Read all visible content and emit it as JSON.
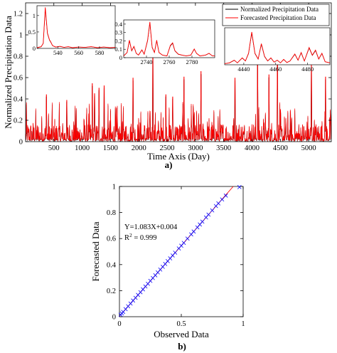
{
  "chart_data": [
    {
      "type": "line",
      "panel_label": "a)",
      "xlabel": "Time Axis (Day)",
      "ylabel": "Normalized Precipitation Data",
      "xlim": [
        1,
        5400
      ],
      "ylim": [
        0,
        1.3
      ],
      "xticks": [
        500,
        1000,
        1500,
        2000,
        2500,
        3000,
        3500,
        4000,
        4500,
        5000
      ],
      "yticks": [
        0,
        0.2,
        0.4,
        0.6,
        0.8,
        1,
        1.2
      ],
      "legend": {
        "placement": "top-right",
        "entries": [
          {
            "name": "Normalized Precipitation Data",
            "color": "#000000"
          },
          {
            "name": "Forecasted Precipitation Data",
            "color": "#ff0000"
          }
        ]
      },
      "series": [
        {
          "name": "Normalized Precipitation Data",
          "color": "#000000"
        },
        {
          "name": "Forecasted Precipitation Data",
          "color": "#ff0000"
        }
      ],
      "peaks": [
        {
          "x": 370,
          "y": 0.42
        },
        {
          "x": 730,
          "y": 0.37
        },
        {
          "x": 1175,
          "y": 0.52
        },
        {
          "x": 1220,
          "y": 0.43
        },
        {
          "x": 1300,
          "y": 0.48
        },
        {
          "x": 1390,
          "y": 0.5
        },
        {
          "x": 1900,
          "y": 0.57
        },
        {
          "x": 2250,
          "y": 0.8
        },
        {
          "x": 2480,
          "y": 0.42
        },
        {
          "x": 2600,
          "y": 0.4
        },
        {
          "x": 2800,
          "y": 0.58
        },
        {
          "x": 3100,
          "y": 0.63
        },
        {
          "x": 3700,
          "y": 0.57
        },
        {
          "x": 4100,
          "y": 0.75
        },
        {
          "x": 4300,
          "y": 0.6
        },
        {
          "x": 4450,
          "y": 0.85
        },
        {
          "x": 5050,
          "y": 0.69
        },
        {
          "x": 5300,
          "y": 0.58
        }
      ],
      "insets": [
        {
          "xticks": [
            540,
            560,
            580
          ],
          "yticks": [
            0,
            0.5,
            1
          ],
          "xlim": [
            520,
            595
          ],
          "ylim": [
            0,
            1.3
          ],
          "points": [
            [
              520,
              0.02
            ],
            [
              524,
              0.05
            ],
            [
              526,
              0.15
            ],
            [
              528,
              1.2
            ],
            [
              530,
              0.45
            ],
            [
              532,
              0.25
            ],
            [
              533,
              0.2
            ],
            [
              535,
              0.08
            ],
            [
              538,
              0.04
            ],
            [
              542,
              0.06
            ],
            [
              546,
              0.03
            ],
            [
              550,
              0.05
            ],
            [
              554,
              0.02
            ],
            [
              560,
              0.04
            ],
            [
              566,
              0.03
            ],
            [
              572,
              0.05
            ],
            [
              578,
              0.02
            ],
            [
              584,
              0.04
            ],
            [
              590,
              0.02
            ],
            [
              595,
              0.03
            ]
          ]
        },
        {
          "xticks": [
            2740,
            2760,
            2780
          ],
          "yticks": [
            0,
            0.1,
            0.2,
            0.3,
            0.4
          ],
          "xlim": [
            2720,
            2800
          ],
          "ylim": [
            0,
            0.45
          ],
          "points": [
            [
              2720,
              0.02
            ],
            [
              2723,
              0.06
            ],
            [
              2725,
              0.2
            ],
            [
              2727,
              0.08
            ],
            [
              2729,
              0.13
            ],
            [
              2731,
              0.05
            ],
            [
              2733,
              0.03
            ],
            [
              2736,
              0.09
            ],
            [
              2738,
              0.04
            ],
            [
              2741,
              0.2
            ],
            [
              2743,
              0.41
            ],
            [
              2745,
              0.12
            ],
            [
              2747,
              0.06
            ],
            [
              2749,
              0.2
            ],
            [
              2751,
              0.06
            ],
            [
              2754,
              0.03
            ],
            [
              2758,
              0.02
            ],
            [
              2761,
              0.14
            ],
            [
              2763,
              0.17
            ],
            [
              2765,
              0.08
            ],
            [
              2768,
              0.04
            ],
            [
              2771,
              0.03
            ],
            [
              2775,
              0.02
            ],
            [
              2779,
              0.03
            ],
            [
              2782,
              0.1
            ],
            [
              2784,
              0.05
            ],
            [
              2787,
              0.02
            ],
            [
              2792,
              0.03
            ],
            [
              2795,
              0.05
            ],
            [
              2798,
              0.02
            ],
            [
              2800,
              0.02
            ]
          ]
        },
        {
          "xticks": [
            4440,
            4460,
            4480
          ],
          "yticks": [],
          "xlim": [
            4428,
            4494
          ],
          "ylim": [
            0,
            1.0
          ],
          "points": [
            [
              4428,
              0.03
            ],
            [
              4431,
              0.05
            ],
            [
              4434,
              0.12
            ],
            [
              4436,
              0.05
            ],
            [
              4439,
              0.18
            ],
            [
              4441,
              0.1
            ],
            [
              4443,
              0.3
            ],
            [
              4445,
              0.85
            ],
            [
              4447,
              0.3
            ],
            [
              4449,
              0.15
            ],
            [
              4451,
              0.55
            ],
            [
              4453,
              0.22
            ],
            [
              4455,
              0.1
            ],
            [
              4457,
              0.18
            ],
            [
              4459,
              0.07
            ],
            [
              4461,
              0.12
            ],
            [
              4463,
              0.05
            ],
            [
              4465,
              0.14
            ],
            [
              4467,
              0.06
            ],
            [
              4469,
              0.1
            ],
            [
              4472,
              0.28
            ],
            [
              4474,
              0.12
            ],
            [
              4476,
              0.32
            ],
            [
              4478,
              0.1
            ],
            [
              4481,
              0.45
            ],
            [
              4483,
              0.25
            ],
            [
              4485,
              0.38
            ],
            [
              4487,
              0.15
            ],
            [
              4489,
              0.3
            ],
            [
              4491,
              0.08
            ],
            [
              4494,
              0.05
            ]
          ]
        }
      ]
    },
    {
      "type": "scatter",
      "panel_label": "b)",
      "xlabel": "Observed Data",
      "ylabel": "Forecasted Data",
      "xlim": [
        0,
        1
      ],
      "ylim": [
        0,
        1
      ],
      "xticks": [
        0,
        0.5,
        1
      ],
      "yticks": [
        0,
        0.2,
        0.4,
        0.6,
        0.8,
        1
      ],
      "grid": false,
      "equation": "Y=1.083X+0.004",
      "r2_label": "R",
      "r2_sup": "2",
      "r2_value": " = 0.999",
      "fit": {
        "slope": 1.083,
        "intercept": 0.004,
        "color": "#ff0000"
      },
      "marker": {
        "symbol": "x",
        "color": "#0000ff"
      },
      "points": [
        [
          0.01,
          0.015
        ],
        [
          0.02,
          0.025
        ],
        [
          0.03,
          0.037
        ],
        [
          0.05,
          0.058
        ],
        [
          0.07,
          0.08
        ],
        [
          0.09,
          0.101
        ],
        [
          0.11,
          0.124
        ],
        [
          0.13,
          0.145
        ],
        [
          0.15,
          0.167
        ],
        [
          0.17,
          0.188
        ],
        [
          0.19,
          0.21
        ],
        [
          0.21,
          0.232
        ],
        [
          0.23,
          0.253
        ],
        [
          0.25,
          0.275
        ],
        [
          0.27,
          0.297
        ],
        [
          0.29,
          0.318
        ],
        [
          0.31,
          0.34
        ],
        [
          0.33,
          0.362
        ],
        [
          0.35,
          0.383
        ],
        [
          0.37,
          0.405
        ],
        [
          0.39,
          0.427
        ],
        [
          0.41,
          0.448
        ],
        [
          0.43,
          0.47
        ],
        [
          0.45,
          0.492
        ],
        [
          0.48,
          0.524
        ],
        [
          0.5,
          0.545
        ],
        [
          0.52,
          0.567
        ],
        [
          0.55,
          0.6
        ],
        [
          0.58,
          0.632
        ],
        [
          0.6,
          0.654
        ],
        [
          0.63,
          0.686
        ],
        [
          0.65,
          0.708
        ],
        [
          0.67,
          0.73
        ],
        [
          0.7,
          0.762
        ],
        [
          0.72,
          0.784
        ],
        [
          0.75,
          0.816
        ],
        [
          0.78,
          0.85
        ],
        [
          0.8,
          0.87
        ],
        [
          0.83,
          0.9
        ],
        [
          0.86,
          0.93
        ],
        [
          0.97,
          0.995
        ]
      ]
    }
  ]
}
